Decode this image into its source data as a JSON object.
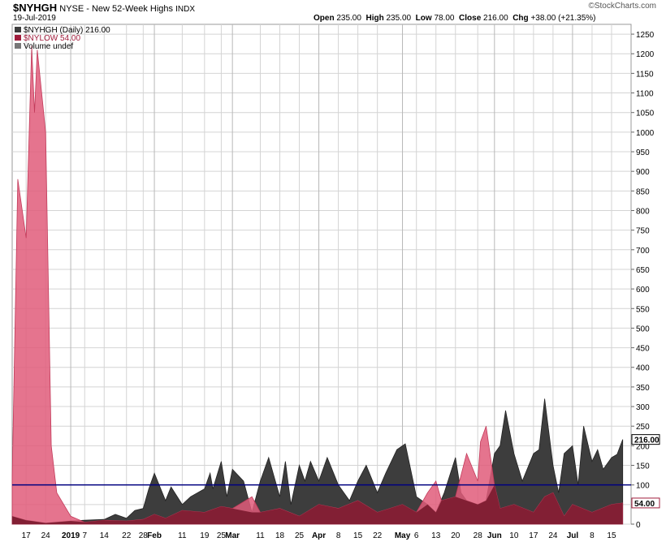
{
  "header": {
    "symbol": "$NYHGH",
    "name": "NYSE - New 52-Week Highs",
    "exchange": "INDX",
    "date": "19-Jul-2019",
    "watermark": "©StockCharts.com",
    "ohlc": {
      "open_label": "Open",
      "open": "235.00",
      "high_label": "High",
      "high": "235.00",
      "low_label": "Low",
      "low": "78.00",
      "close_label": "Close",
      "close": "216.00",
      "chg_label": "Chg",
      "chg": "+38.00 (+21.35%)"
    }
  },
  "legend": {
    "nyhgh": "$NYHGH (Daily) 216.00",
    "nylow": "$NYLOW 54.00",
    "volume": "Volume undef"
  },
  "colors": {
    "nyhgh_fill": "#3d3d3d",
    "nylow_fill": "#e05c7a",
    "overlap_fill": "#7a1a2e",
    "reference_line": "#000080",
    "grid": "#d4d4d4"
  },
  "chart_data": {
    "type": "area",
    "ylim": [
      0,
      1275
    ],
    "yticks": [
      0,
      50,
      100,
      150,
      200,
      250,
      300,
      350,
      400,
      450,
      500,
      550,
      600,
      650,
      700,
      750,
      800,
      850,
      900,
      950,
      1000,
      1050,
      1100,
      1150,
      1200,
      1250
    ],
    "reference_line": 100,
    "last_values": {
      "nyhgh": "216.00",
      "nylow": "54.00"
    },
    "xticks": [
      {
        "label": "17",
        "bold": false,
        "date": "2018-12-17"
      },
      {
        "label": "24",
        "bold": false,
        "date": "2018-12-24"
      },
      {
        "label": "2019",
        "bold": true,
        "date": "2019-01-02"
      },
      {
        "label": "7",
        "bold": false,
        "date": "2019-01-07"
      },
      {
        "label": "14",
        "bold": false,
        "date": "2019-01-14"
      },
      {
        "label": "22",
        "bold": false,
        "date": "2019-01-22"
      },
      {
        "label": "28",
        "bold": false,
        "date": "2019-01-28"
      },
      {
        "label": "Feb",
        "bold": true,
        "date": "2019-02-01"
      },
      {
        "label": "11",
        "bold": false,
        "date": "2019-02-11"
      },
      {
        "label": "19",
        "bold": false,
        "date": "2019-02-19"
      },
      {
        "label": "25",
        "bold": false,
        "date": "2019-02-25"
      },
      {
        "label": "Mar",
        "bold": true,
        "date": "2019-03-01"
      },
      {
        "label": "11",
        "bold": false,
        "date": "2019-03-11"
      },
      {
        "label": "18",
        "bold": false,
        "date": "2019-03-18"
      },
      {
        "label": "25",
        "bold": false,
        "date": "2019-03-25"
      },
      {
        "label": "Apr",
        "bold": true,
        "date": "2019-04-01"
      },
      {
        "label": "8",
        "bold": false,
        "date": "2019-04-08"
      },
      {
        "label": "15",
        "bold": false,
        "date": "2019-04-15"
      },
      {
        "label": "22",
        "bold": false,
        "date": "2019-04-22"
      },
      {
        "label": "May",
        "bold": true,
        "date": "2019-05-01"
      },
      {
        "label": "6",
        "bold": false,
        "date": "2019-05-06"
      },
      {
        "label": "13",
        "bold": false,
        "date": "2019-05-13"
      },
      {
        "label": "20",
        "bold": false,
        "date": "2019-05-20"
      },
      {
        "label": "28",
        "bold": false,
        "date": "2019-05-28"
      },
      {
        "label": "Jun",
        "bold": true,
        "date": "2019-06-03"
      },
      {
        "label": "10",
        "bold": false,
        "date": "2019-06-10"
      },
      {
        "label": "17",
        "bold": false,
        "date": "2019-06-17"
      },
      {
        "label": "24",
        "bold": false,
        "date": "2019-06-24"
      },
      {
        "label": "Jul",
        "bold": true,
        "date": "2019-07-01"
      },
      {
        "label": "8",
        "bold": false,
        "date": "2019-07-08"
      },
      {
        "label": "15",
        "bold": false,
        "date": "2019-07-15"
      }
    ],
    "series": [
      {
        "name": "$NYHGH",
        "points": [
          [
            "2018-12-12",
            20
          ],
          [
            "2018-12-17",
            10
          ],
          [
            "2018-12-24",
            3
          ],
          [
            "2019-01-02",
            8
          ],
          [
            "2019-01-07",
            10
          ],
          [
            "2019-01-14",
            12
          ],
          [
            "2019-01-18",
            25
          ],
          [
            "2019-01-22",
            15
          ],
          [
            "2019-01-25",
            35
          ],
          [
            "2019-01-28",
            40
          ],
          [
            "2019-01-30",
            90
          ],
          [
            "2019-02-01",
            130
          ],
          [
            "2019-02-05",
            60
          ],
          [
            "2019-02-07",
            95
          ],
          [
            "2019-02-11",
            50
          ],
          [
            "2019-02-14",
            70
          ],
          [
            "2019-02-19",
            90
          ],
          [
            "2019-02-21",
            130
          ],
          [
            "2019-02-22",
            90
          ],
          [
            "2019-02-25",
            160
          ],
          [
            "2019-02-27",
            70
          ],
          [
            "2019-03-01",
            140
          ],
          [
            "2019-03-05",
            110
          ],
          [
            "2019-03-08",
            30
          ],
          [
            "2019-03-11",
            110
          ],
          [
            "2019-03-14",
            170
          ],
          [
            "2019-03-18",
            70
          ],
          [
            "2019-03-20",
            160
          ],
          [
            "2019-03-22",
            50
          ],
          [
            "2019-03-25",
            150
          ],
          [
            "2019-03-27",
            110
          ],
          [
            "2019-03-29",
            160
          ],
          [
            "2019-04-01",
            110
          ],
          [
            "2019-04-04",
            170
          ],
          [
            "2019-04-08",
            100
          ],
          [
            "2019-04-12",
            60
          ],
          [
            "2019-04-15",
            110
          ],
          [
            "2019-04-18",
            150
          ],
          [
            "2019-04-22",
            80
          ],
          [
            "2019-04-25",
            130
          ],
          [
            "2019-04-29",
            190
          ],
          [
            "2019-05-02",
            205
          ],
          [
            "2019-05-06",
            70
          ],
          [
            "2019-05-10",
            50
          ],
          [
            "2019-05-13",
            30
          ],
          [
            "2019-05-16",
            80
          ],
          [
            "2019-05-20",
            170
          ],
          [
            "2019-05-22",
            80
          ],
          [
            "2019-05-24",
            60
          ],
          [
            "2019-05-28",
            50
          ],
          [
            "2019-05-31",
            60
          ],
          [
            "2019-06-03",
            180
          ],
          [
            "2019-06-05",
            200
          ],
          [
            "2019-06-07",
            290
          ],
          [
            "2019-06-10",
            180
          ],
          [
            "2019-06-13",
            110
          ],
          [
            "2019-06-17",
            180
          ],
          [
            "2019-06-19",
            190
          ],
          [
            "2019-06-21",
            320
          ],
          [
            "2019-06-24",
            150
          ],
          [
            "2019-06-26",
            80
          ],
          [
            "2019-06-28",
            180
          ],
          [
            "2019-07-01",
            200
          ],
          [
            "2019-07-03",
            100
          ],
          [
            "2019-07-05",
            250
          ],
          [
            "2019-07-08",
            160
          ],
          [
            "2019-07-10",
            190
          ],
          [
            "2019-07-12",
            140
          ],
          [
            "2019-07-15",
            170
          ],
          [
            "2019-07-17",
            178
          ],
          [
            "2019-07-19",
            216
          ]
        ]
      },
      {
        "name": "$NYLOW",
        "points": [
          [
            "2018-12-12",
            120
          ],
          [
            "2018-12-14",
            880
          ],
          [
            "2018-12-17",
            730
          ],
          [
            "2018-12-19",
            1220
          ],
          [
            "2018-12-20",
            1050
          ],
          [
            "2018-12-21",
            1210
          ],
          [
            "2018-12-24",
            1000
          ],
          [
            "2018-12-26",
            200
          ],
          [
            "2018-12-28",
            80
          ],
          [
            "2019-01-02",
            20
          ],
          [
            "2019-01-07",
            5
          ],
          [
            "2019-01-14",
            10
          ],
          [
            "2019-01-22",
            8
          ],
          [
            "2019-01-28",
            12
          ],
          [
            "2019-02-01",
            25
          ],
          [
            "2019-02-05",
            15
          ],
          [
            "2019-02-11",
            35
          ],
          [
            "2019-02-19",
            30
          ],
          [
            "2019-02-25",
            45
          ],
          [
            "2019-03-01",
            40
          ],
          [
            "2019-03-08",
            70
          ],
          [
            "2019-03-11",
            30
          ],
          [
            "2019-03-18",
            40
          ],
          [
            "2019-03-25",
            20
          ],
          [
            "2019-04-01",
            50
          ],
          [
            "2019-04-08",
            40
          ],
          [
            "2019-04-15",
            60
          ],
          [
            "2019-04-22",
            30
          ],
          [
            "2019-05-01",
            50
          ],
          [
            "2019-05-06",
            30
          ],
          [
            "2019-05-10",
            80
          ],
          [
            "2019-05-13",
            110
          ],
          [
            "2019-05-15",
            60
          ],
          [
            "2019-05-20",
            70
          ],
          [
            "2019-05-24",
            180
          ],
          [
            "2019-05-28",
            110
          ],
          [
            "2019-05-29",
            210
          ],
          [
            "2019-05-31",
            250
          ],
          [
            "2019-06-03",
            100
          ],
          [
            "2019-06-05",
            40
          ],
          [
            "2019-06-10",
            50
          ],
          [
            "2019-06-17",
            30
          ],
          [
            "2019-06-21",
            70
          ],
          [
            "2019-06-24",
            80
          ],
          [
            "2019-06-28",
            20
          ],
          [
            "2019-07-01",
            50
          ],
          [
            "2019-07-08",
            30
          ],
          [
            "2019-07-15",
            50
          ],
          [
            "2019-07-19",
            54
          ]
        ]
      }
    ]
  }
}
